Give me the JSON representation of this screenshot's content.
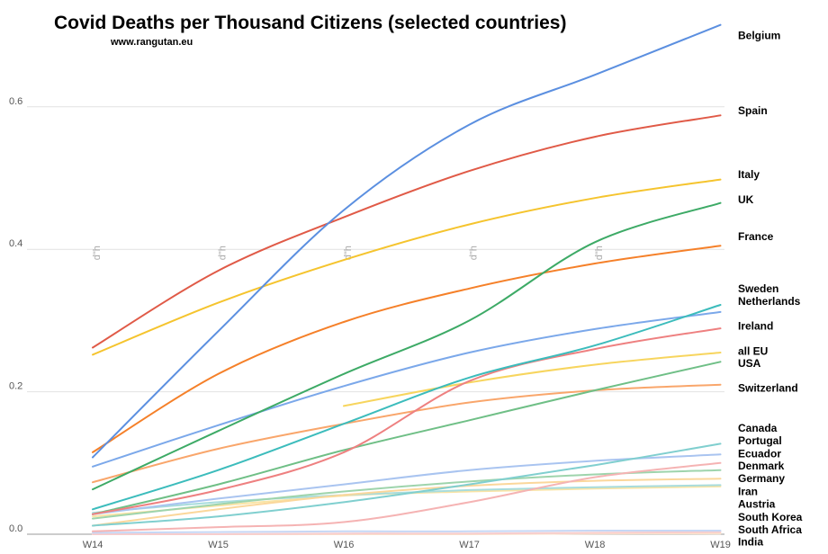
{
  "chart_data": {
    "type": "line",
    "title": "Covid Deaths per Thousand Citizens (selected countries)",
    "subtitle": "www.rangutan.eu",
    "watermark": "d\"h",
    "xlabel": "",
    "ylabel": "",
    "categories": [
      "W14",
      "W15",
      "W16",
      "W17",
      "W18",
      "W19"
    ],
    "ylim": [
      0,
      0.7
    ],
    "yticks": [
      "0.0",
      "0.2",
      "0.4",
      "0.6"
    ],
    "ytick_values": [
      0,
      0.2,
      0.4,
      0.6
    ],
    "grid": true,
    "series": [
      {
        "name": "Belgium",
        "color": "#5b8fe0",
        "values": [
          0.108,
          0.285,
          0.455,
          0.575,
          0.645,
          0.715
        ]
      },
      {
        "name": "Spain",
        "color": "#e05a47",
        "values": [
          0.262,
          0.37,
          0.445,
          0.51,
          0.558,
          0.588
        ]
      },
      {
        "name": "Italy",
        "color": "#f5c42e",
        "values": [
          0.252,
          0.325,
          0.385,
          0.435,
          0.472,
          0.498
        ]
      },
      {
        "name": "UK",
        "color": "#3daa66",
        "values": [
          0.063,
          0.145,
          0.225,
          0.3,
          0.41,
          0.465
        ]
      },
      {
        "name": "France",
        "color": "#f58029",
        "values": [
          0.115,
          0.225,
          0.298,
          0.345,
          0.38,
          0.405
        ]
      },
      {
        "name": "Sweden",
        "color": "#3cbcbc",
        "values": [
          0.035,
          0.09,
          0.155,
          0.22,
          0.265,
          0.322
        ]
      },
      {
        "name": "Netherlands",
        "color": "#7ba8ea",
        "values": [
          0.095,
          0.153,
          0.208,
          0.255,
          0.288,
          0.312
        ]
      },
      {
        "name": "Ireland",
        "color": "#ee8080",
        "values": [
          0.028,
          0.062,
          0.115,
          0.215,
          0.26,
          0.289
        ]
      },
      {
        "name": "all EU",
        "color": "#f7d55e",
        "values": [
          null,
          null,
          0.18,
          0.213,
          0.238,
          0.255
        ]
      },
      {
        "name": "USA",
        "color": "#6fbf86",
        "values": [
          0.028,
          0.07,
          0.118,
          0.16,
          0.202,
          0.242
        ]
      },
      {
        "name": "Switzerland",
        "color": "#f9a66b",
        "values": [
          0.073,
          0.12,
          0.155,
          0.185,
          0.202,
          0.21
        ]
      },
      {
        "name": "Canada",
        "color": "#80cfcf",
        "values": [
          0.012,
          0.025,
          0.045,
          0.07,
          0.097,
          0.127
        ]
      },
      {
        "name": "Portugal",
        "color": "#a9c4f0",
        "values": [
          0.028,
          0.05,
          0.07,
          0.09,
          0.103,
          0.112
        ]
      },
      {
        "name": "Ecuador",
        "color": "#f5b3b3",
        "values": [
          0.004,
          0.01,
          0.017,
          0.045,
          0.08,
          0.1
        ]
      },
      {
        "name": "Denmark",
        "color": "#9ed4ac",
        "values": [
          0.022,
          0.042,
          0.06,
          0.074,
          0.084,
          0.09
        ]
      },
      {
        "name": "Germany",
        "color": "#fbd79b",
        "values": [
          0.012,
          0.035,
          0.055,
          0.068,
          0.075,
          0.078
        ]
      },
      {
        "name": "Iran",
        "color": "#a8dcdc",
        "values": [
          0.03,
          0.045,
          0.055,
          0.062,
          0.066,
          0.069
        ]
      },
      {
        "name": "Austria",
        "color": "#f9e4a6",
        "values": [
          0.025,
          0.04,
          0.054,
          0.06,
          0.064,
          0.067
        ]
      },
      {
        "name": "South Korea",
        "color": "#c6d7f5",
        "values": [
          0.002,
          0.003,
          0.004,
          0.004,
          0.005,
          0.005
        ]
      },
      {
        "name": "South Africa",
        "color": "#f7cdcd",
        "values": [
          0.0,
          0.0,
          0.001,
          0.001,
          0.002,
          0.003
        ]
      },
      {
        "name": "India",
        "color": "#fbe3cc",
        "values": [
          0.0,
          0.0,
          0.0,
          0.0,
          0.001,
          0.001
        ]
      }
    ],
    "labels": [
      {
        "text": "Belgium",
        "value": 0.7
      },
      {
        "text": "Spain",
        "value": 0.595
      },
      {
        "text": "Italy",
        "value": 0.505
      },
      {
        "text": "UK",
        "value": 0.47
      },
      {
        "text": "France",
        "value": 0.418
      },
      {
        "text": "Sweden",
        "value": 0.345
      },
      {
        "text": "Netherlands",
        "value": 0.327
      },
      {
        "text": "Ireland",
        "value": 0.292
      },
      {
        "text": "all EU",
        "value": 0.257
      },
      {
        "text": "USA",
        "value": 0.24
      },
      {
        "text": "Switzerland",
        "value": 0.205
      },
      {
        "text": "Canada",
        "value": 0.149
      },
      {
        "text": "Portugal",
        "value": 0.131
      },
      {
        "text": "Ecuador",
        "value": 0.113
      },
      {
        "text": "Denmark",
        "value": 0.096
      },
      {
        "text": "Germany",
        "value": 0.078
      },
      {
        "text": "Iran",
        "value": 0.06
      },
      {
        "text": "Austria",
        "value": 0.042
      },
      {
        "text": "South Korea",
        "value": 0.024
      },
      {
        "text": "South Africa",
        "value": 0.006
      },
      {
        "text": "India",
        "value": -0.011
      }
    ]
  }
}
